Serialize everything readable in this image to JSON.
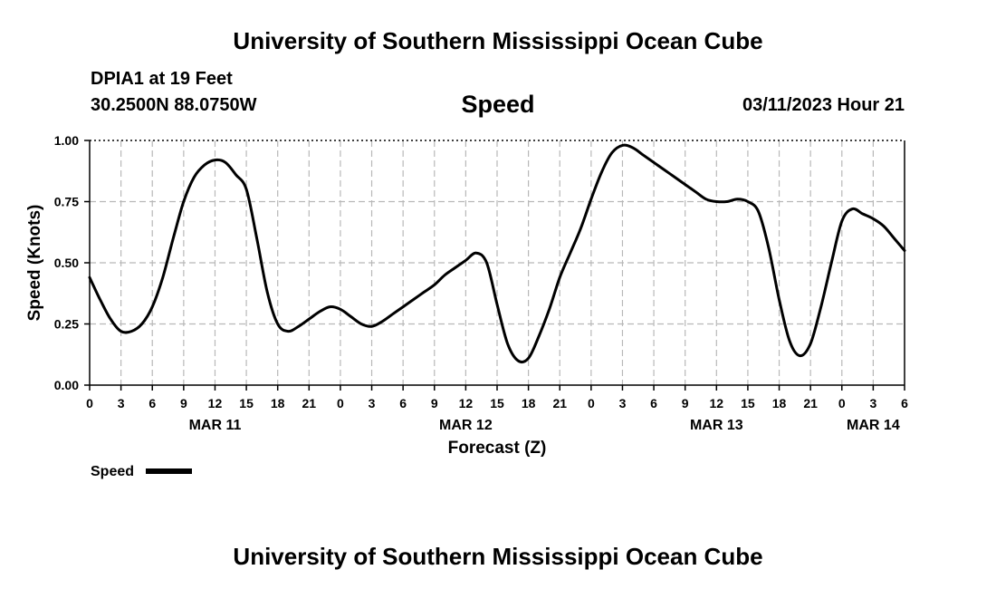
{
  "header": {
    "title": "University of Southern Mississippi Ocean Cube",
    "station": "DPIA1 at 19 Feet",
    "coords": "30.2500N  88.0750W",
    "chart_title": "Speed",
    "datetime": "03/11/2023 Hour 21"
  },
  "footer": {
    "title": "University of Southern Mississippi Ocean Cube"
  },
  "chart_data": {
    "type": "line",
    "title": "Speed",
    "xlabel": "Forecast (Z)",
    "ylabel": "Speed (Knots)",
    "ylim": [
      0,
      1
    ],
    "xlim": [
      0,
      78
    ],
    "yticks": [
      "0.00",
      "0.25",
      "0.50",
      "0.75",
      "1.00"
    ],
    "xtick_labels": [
      "0",
      "3",
      "6",
      "9",
      "12",
      "15",
      "18",
      "21",
      "0",
      "3",
      "6",
      "9",
      "12",
      "15",
      "18",
      "21",
      "0",
      "3",
      "6",
      "9",
      "12",
      "15",
      "18",
      "21",
      "0",
      "3",
      "6"
    ],
    "date_labels": [
      {
        "label": "MAR 11",
        "x": 12
      },
      {
        "label": "MAR 12",
        "x": 36
      },
      {
        "label": "MAR 13",
        "x": 60
      },
      {
        "label": "MAR 14",
        "x": 75
      }
    ],
    "grid": true,
    "legend": "bottom-left",
    "series": [
      {
        "name": "Speed",
        "color": "#000000",
        "x": [
          0,
          1,
          2,
          3,
          4,
          5,
          6,
          7,
          8,
          9,
          10,
          11,
          12,
          13,
          14,
          15,
          16,
          17,
          18,
          19,
          20,
          21,
          22,
          23,
          24,
          25,
          26,
          27,
          28,
          29,
          30,
          31,
          32,
          33,
          34,
          35,
          36,
          37,
          38,
          39,
          40,
          41,
          42,
          43,
          44,
          45,
          46,
          47,
          48,
          49,
          50,
          51,
          52,
          53,
          54,
          55,
          56,
          57,
          58,
          59,
          60,
          61,
          62,
          63,
          64,
          65,
          66,
          67,
          68,
          69,
          70,
          71,
          72,
          73,
          74,
          75,
          76,
          77,
          78
        ],
        "values": [
          0.44,
          0.35,
          0.27,
          0.22,
          0.22,
          0.25,
          0.32,
          0.44,
          0.6,
          0.75,
          0.85,
          0.9,
          0.92,
          0.91,
          0.86,
          0.8,
          0.6,
          0.38,
          0.25,
          0.22,
          0.24,
          0.27,
          0.3,
          0.32,
          0.31,
          0.28,
          0.25,
          0.24,
          0.26,
          0.29,
          0.32,
          0.35,
          0.38,
          0.41,
          0.45,
          0.48,
          0.51,
          0.54,
          0.5,
          0.33,
          0.17,
          0.1,
          0.11,
          0.2,
          0.31,
          0.44,
          0.54,
          0.64,
          0.76,
          0.87,
          0.95,
          0.98,
          0.97,
          0.94,
          0.91,
          0.88,
          0.85,
          0.82,
          0.79,
          0.76,
          0.75,
          0.75,
          0.76,
          0.75,
          0.71,
          0.56,
          0.35,
          0.18,
          0.12,
          0.17,
          0.32,
          0.5,
          0.67,
          0.72,
          0.7,
          0.68,
          0.65,
          0.6,
          0.55
        ]
      }
    ]
  }
}
